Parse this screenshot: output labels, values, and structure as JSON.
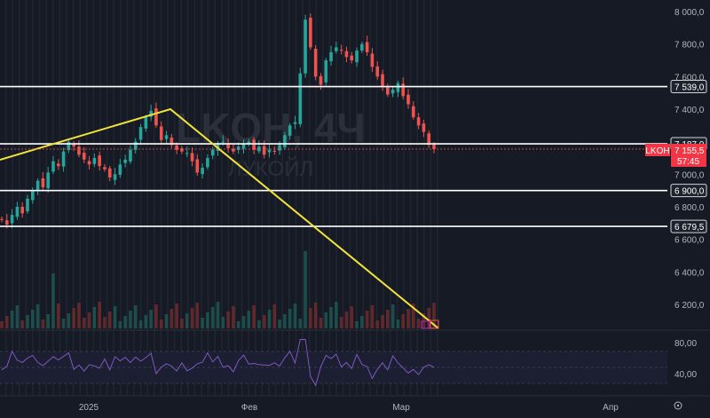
{
  "chart_data": {
    "type": "candlestick",
    "title": "LKOH, 4Ч",
    "subtitle": "ЛУКОЙЛ",
    "symbol": "LKOH",
    "timeframe": "4Ч",
    "current_price": "7 155,5",
    "countdown": "57:45",
    "price_axis_ticks": [
      "8 000,0",
      "7 800,0",
      "7 600,0",
      "7 400,0",
      "7 200,0",
      "7 000,0",
      "6 800,0",
      "6 600,0",
      "6 400,0",
      "6 200,0"
    ],
    "price_range": [
      6100,
      8050
    ],
    "horizontal_levels": [
      {
        "value": 7539.0,
        "label": "7 539,0"
      },
      {
        "value": 7187.0,
        "label": "7 187,0"
      },
      {
        "value": 6900.0,
        "label": "6 900,0"
      },
      {
        "value": 6679.5,
        "label": "6 679,5"
      }
    ],
    "trend_lines_approx": [
      {
        "from": [
          "Dec 2024",
          7100
        ],
        "to": [
          "mid Jan 2025",
          7400
        ]
      },
      {
        "from": [
          "mid Jan 2025",
          7400
        ],
        "to": [
          "mid Mar 2025",
          6100
        ]
      }
    ],
    "time_axis_labels": [
      "2025",
      "Фев",
      "Мар",
      "Апр"
    ],
    "indicator": {
      "type": "RSI",
      "axis_ticks": [
        "80,00",
        "40,00"
      ],
      "band": [
        30,
        70
      ]
    },
    "series_close_approx": [
      6720,
      6690,
      6750,
      6800,
      6760,
      6850,
      6900,
      6960,
      6920,
      7010,
      7080,
      7050,
      7140,
      7200,
      7170,
      7120,
      7090,
      7060,
      7100,
      7050,
      7030,
      6980,
      7000,
      7060,
      7090,
      7150,
      7200,
      7290,
      7350,
      7390,
      7300,
      7210,
      7240,
      7180,
      7150,
      7140,
      7130,
      7080,
      7010,
      7040,
      7100,
      7150,
      7190,
      7200,
      7160,
      7140,
      7170,
      7190,
      7200,
      7150,
      7170,
      7120,
      7150,
      7140,
      7180,
      7240,
      7300,
      7320,
      7620,
      7950,
      7780,
      7600,
      7550,
      7700,
      7750,
      7780,
      7760,
      7720,
      7700,
      7760,
      7800,
      7750,
      7660,
      7600,
      7540,
      7490,
      7520,
      7560,
      7480,
      7430,
      7350,
      7300,
      7260,
      7180,
      7155
    ]
  },
  "labels": {
    "watermark_title": "LKOH, 4Ч",
    "watermark_subtitle": "ЛУКОЙЛ"
  },
  "colors": {
    "background": "#161a24",
    "up": "#26a69a",
    "down": "#ef5350",
    "trendline": "#f2e33a",
    "level": "#ffffff",
    "price_tag": "#f23645",
    "rsi_line": "#7e57c2"
  }
}
